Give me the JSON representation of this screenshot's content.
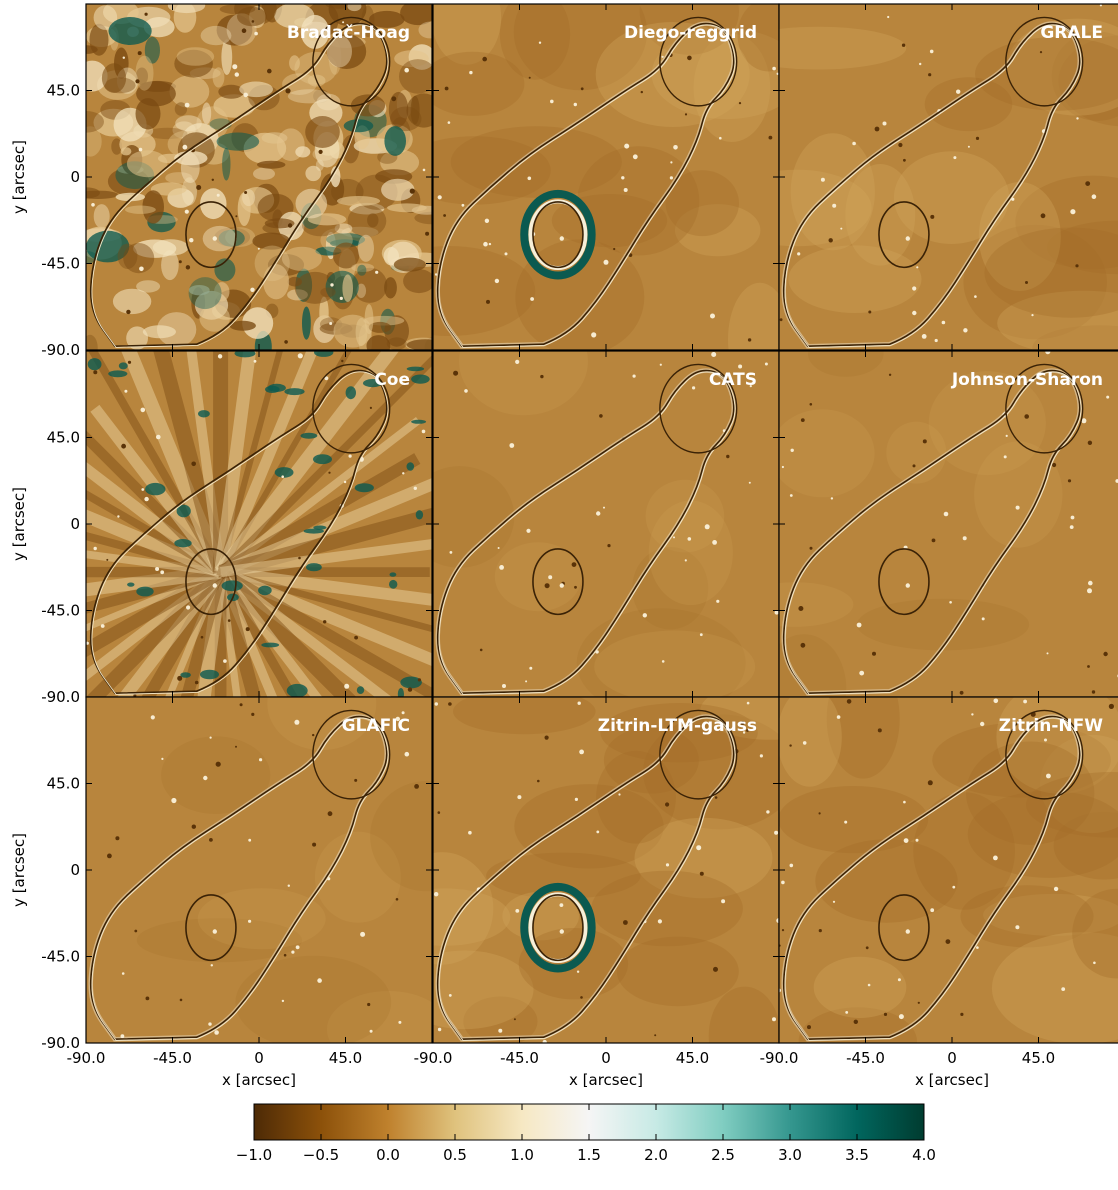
{
  "chart_data": {
    "type": "heatmap",
    "grid": {
      "rows": 3,
      "cols": 3
    },
    "panels": [
      {
        "title": "Bradač-Hoag",
        "style": "noisy"
      },
      {
        "title": "Diego-reggrid",
        "style": "smooth-ring"
      },
      {
        "title": "GRALE",
        "style": "smooth"
      },
      {
        "title": "Coe",
        "style": "radial"
      },
      {
        "title": "CATS",
        "style": "clean"
      },
      {
        "title": "Johnson-Sharon",
        "style": "clean"
      },
      {
        "title": "GLAFIC",
        "style": "clean"
      },
      {
        "title": "Zitrin-LTM-gauss",
        "style": "smooth-ring"
      },
      {
        "title": "Zitrin-NFW",
        "style": "smooth"
      }
    ],
    "x_axis": {
      "label": "x [arcsec]",
      "range": [
        -90,
        90
      ],
      "ticks": [
        -90,
        -45,
        0,
        45
      ],
      "tick_labels": [
        "-90.0",
        "-45.0",
        "0",
        "45.0"
      ]
    },
    "y_axis": {
      "label": "y [arcsec]",
      "range": [
        -90,
        90
      ],
      "ticks": [
        -90,
        -45,
        0,
        45
      ],
      "tick_labels": [
        "-90.0",
        "-45.0",
        "0",
        "45.0"
      ]
    },
    "colorbar": {
      "range": [
        -1.0,
        4.0
      ],
      "ticks": [
        -1.0,
        -0.5,
        0.0,
        0.5,
        1.0,
        1.5,
        2.0,
        2.5,
        3.0,
        3.5,
        4.0
      ],
      "tick_labels": [
        "−1.0",
        "−0.5",
        "0.0",
        "0.5",
        "1.0",
        "1.5",
        "2.0",
        "2.5",
        "3.0",
        "3.5",
        "4.0"
      ],
      "orientation": "horizontal",
      "colormap": "BrBG",
      "stops": [
        "#4d2a06",
        "#8c510a",
        "#bf812d",
        "#dfc27d",
        "#f6e8c3",
        "#f5f5f5",
        "#c7eae5",
        "#80cdc1",
        "#35978f",
        "#01665e",
        "#003c30"
      ]
    },
    "background_color": "#b8853d",
    "critical_curve": {
      "head": {
        "cx": 48,
        "cy": 60,
        "r": 20
      },
      "inner_ellipse": {
        "cx": -25,
        "cy": -30,
        "rx": 13,
        "ry": 17
      },
      "outline": [
        [
          -75,
          -88
        ],
        [
          -88,
          -70
        ],
        [
          -87,
          -45
        ],
        [
          -78,
          -22
        ],
        [
          -60,
          -5
        ],
        [
          -40,
          12
        ],
        [
          -15,
          28
        ],
        [
          10,
          45
        ],
        [
          28,
          56
        ],
        [
          36,
          70
        ],
        [
          48,
          81
        ],
        [
          62,
          78
        ],
        [
          68,
          60
        ],
        [
          62,
          46
        ],
        [
          52,
          36
        ],
        [
          48,
          20
        ],
        [
          38,
          0
        ],
        [
          22,
          -22
        ],
        [
          8,
          -45
        ],
        [
          -5,
          -65
        ],
        [
          -20,
          -82
        ],
        [
          -45,
          -92
        ]
      ]
    }
  }
}
